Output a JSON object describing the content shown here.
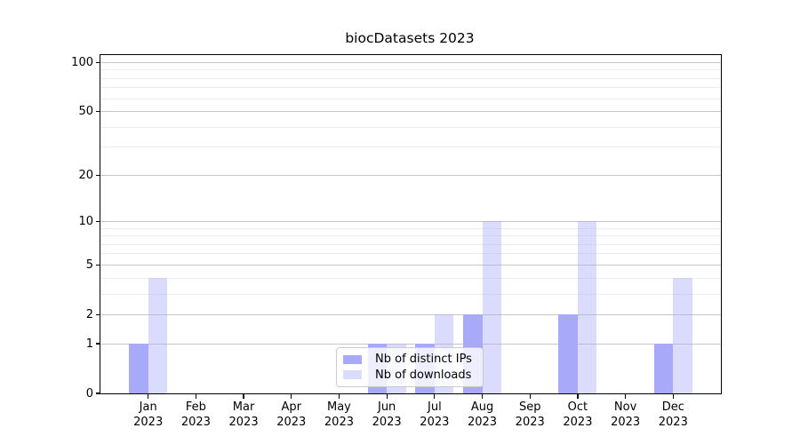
{
  "figure": {
    "background": "#ffffff"
  },
  "chart_data": {
    "type": "bar",
    "title": "biocDatasets 2023",
    "categories": [
      "Jan 2023",
      "Feb 2023",
      "Mar 2023",
      "Apr 2023",
      "May 2023",
      "Jun 2023",
      "Jul 2023",
      "Aug 2023",
      "Sep 2023",
      "Oct 2023",
      "Nov 2023",
      "Dec 2023"
    ],
    "x_tick_line1": [
      "Jan",
      "Feb",
      "Mar",
      "Apr",
      "May",
      "Jun",
      "Jul",
      "Aug",
      "Sep",
      "Oct",
      "Nov",
      "Dec"
    ],
    "x_tick_line2": [
      "2023",
      "2023",
      "2023",
      "2023",
      "2023",
      "2023",
      "2023",
      "2023",
      "2023",
      "2023",
      "2023",
      "2023"
    ],
    "series": [
      {
        "name": "Nb of distinct IPs",
        "color": "#a9a9fa",
        "values": [
          1,
          0,
          0,
          0,
          0,
          1,
          1,
          2,
          0,
          2,
          0,
          1
        ]
      },
      {
        "name": "Nb of downloads",
        "color": "rgba(169,169,250,0.42)",
        "values": [
          4,
          0,
          0,
          0,
          0,
          1,
          2,
          10,
          0,
          10,
          0,
          4
        ]
      }
    ],
    "xlabel": "",
    "ylabel": "",
    "yscale": "log1p",
    "ylim": [
      0,
      110
    ],
    "y_major_ticks": [
      0,
      1,
      2,
      5,
      10,
      20,
      50,
      100
    ],
    "y_minor_gridlines": [
      3,
      4,
      6,
      7,
      8,
      9,
      30,
      40,
      60,
      70,
      80,
      90
    ],
    "grid": true,
    "legend_position": "lower center-left, inside plot",
    "colors": {
      "major_grid": "#c6c6c6",
      "minor_grid": "#ececec",
      "axis": "#000000",
      "distinct_ips_bar": "#a9a9fa",
      "downloads_bar_effective": "#dbdbfa"
    }
  }
}
